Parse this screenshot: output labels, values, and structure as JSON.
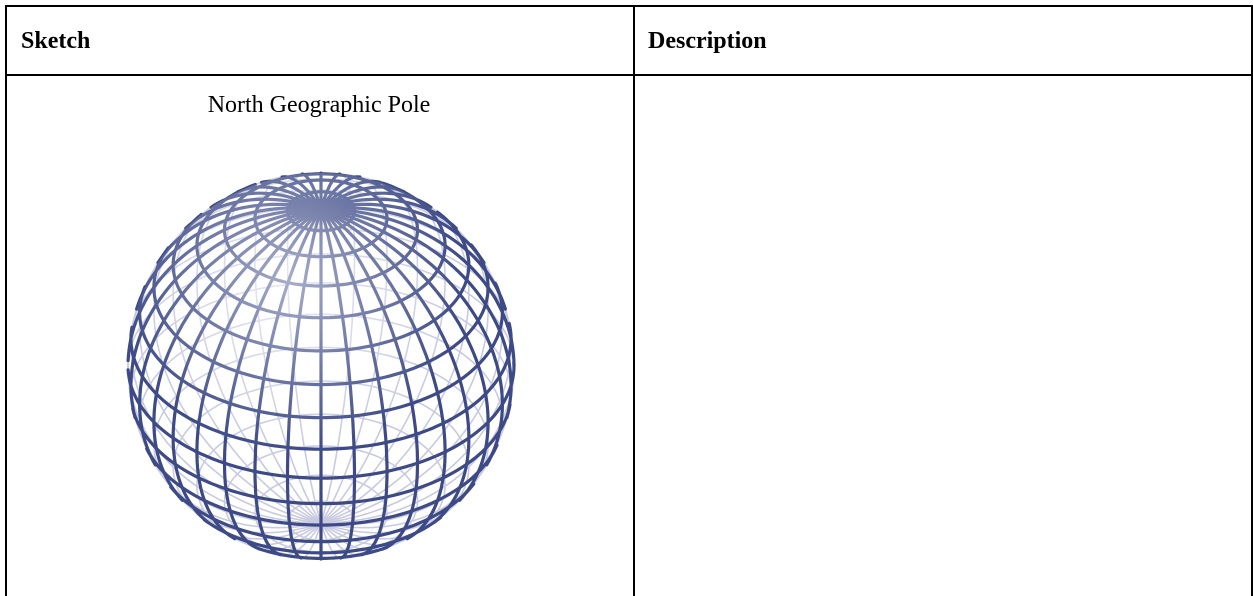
{
  "table": {
    "headers": {
      "sketch": "Sketch",
      "description": "Description"
    },
    "rows": [
      {
        "sketch_caption": "North Geographic Pole",
        "sketch_icon": "wireframe-globe-icon",
        "description": ""
      }
    ]
  },
  "colors": {
    "globe_line": "#3d4a86",
    "globe_faint": "#c8cbe0",
    "border": "#000000"
  }
}
